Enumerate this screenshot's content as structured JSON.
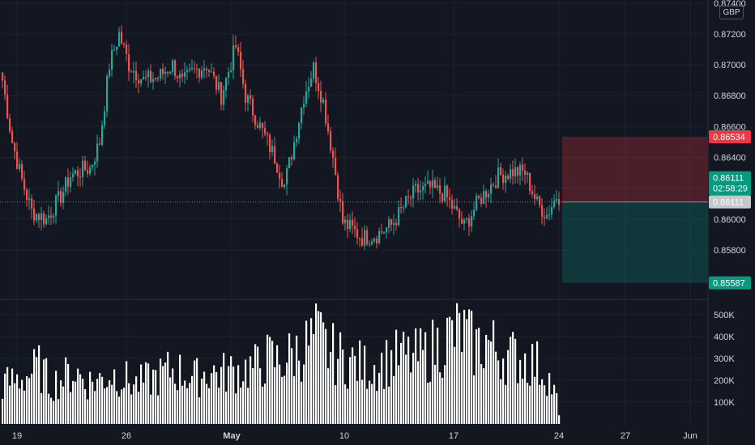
{
  "currency": "GBP",
  "price_axis": {
    "min": 0.8548,
    "max": 0.8742,
    "ticks": [
      "0.87400",
      "0.87200",
      "0.87000",
      "0.86800",
      "0.86600",
      "0.86400",
      "0.86200",
      "0.86000",
      "0.85800"
    ],
    "tick_values": [
      0.874,
      0.872,
      0.87,
      0.868,
      0.866,
      0.864,
      0.862,
      0.86,
      0.858
    ]
  },
  "volume_axis": {
    "max": 540000,
    "ticks": [
      "500K",
      "400K",
      "300K",
      "200K",
      "100K"
    ],
    "tick_values": [
      500000,
      400000,
      300000,
      200000,
      100000
    ]
  },
  "time_axis": {
    "labels": [
      "19",
      "26",
      "May",
      "10",
      "17",
      "24",
      "27",
      "Jun"
    ],
    "bold": [
      false,
      false,
      true,
      false,
      false,
      false,
      false,
      false
    ]
  },
  "price_tags": {
    "stop": {
      "label": "0.86534",
      "value": 0.86534,
      "color": "#f23645"
    },
    "current": {
      "label": "0.86111",
      "countdown": "02:58:29",
      "value": 0.86111,
      "color": "#089981"
    },
    "entry": {
      "label": "0.86111",
      "value": 0.86111,
      "color": "#c6c7ca"
    },
    "target": {
      "label": "0.85587",
      "value": 0.85587,
      "color": "#089981"
    }
  },
  "position_tool": {
    "entry": 0.86111,
    "stop": 0.86534,
    "target": 0.85587,
    "risk_color": "#f23645",
    "reward_color": "#089981"
  },
  "colors": {
    "up": "#26a69a",
    "down": "#ef5350",
    "background": "#131722",
    "grid": "#1e222d",
    "volume": "#ffffff",
    "axis_text": "#d1d4dc"
  },
  "chart_data": {
    "type": "candlestick",
    "grid": true,
    "anchors": {
      "close": [
        0.869,
        0.865,
        0.8625,
        0.8605,
        0.86,
        0.8615,
        0.8628,
        0.8632,
        0.8633,
        0.865,
        0.87,
        0.872,
        0.87,
        0.869,
        0.8692,
        0.87,
        0.8688,
        0.8695,
        0.87,
        0.868,
        0.8712,
        0.868,
        0.866,
        0.864,
        0.8622,
        0.865,
        0.868,
        0.8698,
        0.8676,
        0.864,
        0.8598,
        0.8588,
        0.859,
        0.8596,
        0.861,
        0.8618,
        0.862,
        0.8616,
        0.8595,
        0.8612,
        0.8628,
        0.8631,
        0.863,
        0.861,
        0.8603,
        0.8615
      ],
      "index": [
        0,
        4,
        8,
        12,
        18,
        24,
        28,
        33,
        36,
        40,
        44,
        48,
        52,
        58,
        64,
        70,
        74,
        78,
        84,
        90,
        96,
        100,
        106,
        112,
        116,
        120,
        124,
        128,
        132,
        136,
        140,
        148,
        154,
        160,
        166,
        170,
        176,
        182,
        190,
        196,
        204,
        210,
        215,
        220,
        224,
        228
      ]
    },
    "volume_levels": [
      180000,
      200000,
      220000,
      260000,
      180000,
      210000,
      240000,
      190000,
      200000,
      230000,
      210000,
      180000,
      200000,
      220000,
      250000,
      230000,
      210000,
      240000,
      230000,
      240000,
      250000,
      260000,
      300000,
      280000,
      320000,
      350000,
      400000,
      330000,
      300000,
      280000,
      260000,
      270000,
      290000,
      310000,
      300000,
      320000,
      360000,
      400000,
      420000,
      350000,
      380000,
      330000,
      310000,
      300000,
      280000,
      230000,
      80000
    ],
    "candles": 230,
    "index_range": [
      0,
      229
    ],
    "date_labels_at_index": {
      "19": 5,
      "26": 43,
      "May": 71,
      "10": 109,
      "17": 147,
      "24": 185
    }
  }
}
